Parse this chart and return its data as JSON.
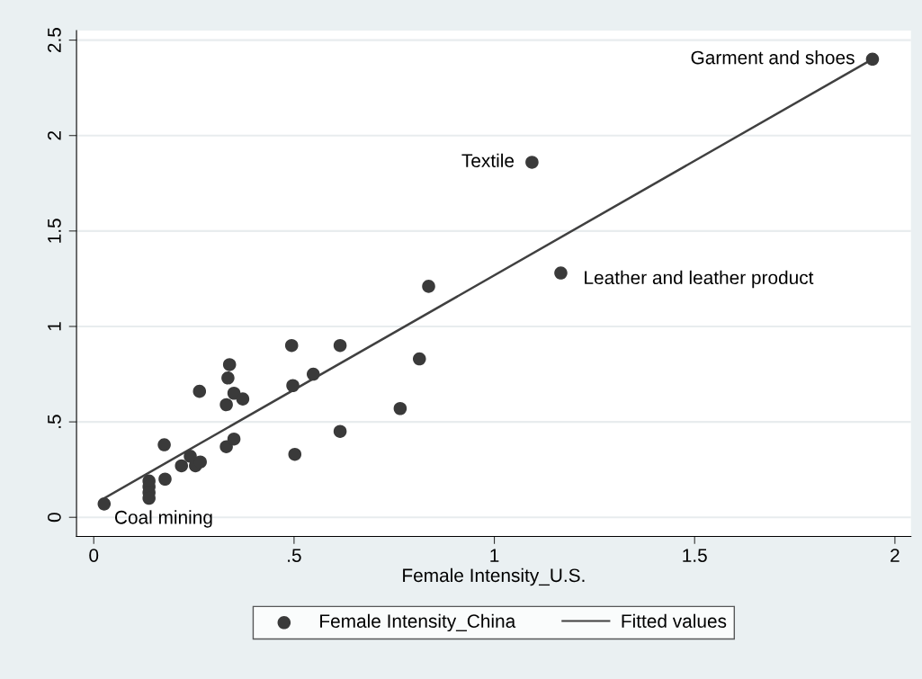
{
  "chart_data": {
    "type": "scatter",
    "xlabel": "Female Intensity_U.S.",
    "xlim": [
      -0.043,
      2.04
    ],
    "ylim": [
      -0.1,
      2.55
    ],
    "xticks": [
      0,
      {
        "value": 0.5,
        "label": ".5"
      },
      1,
      1.5,
      2
    ],
    "yticks": [
      0,
      {
        "value": 0.5,
        "label": ".5"
      },
      1,
      1.5,
      2,
      2.5
    ],
    "grid": "y",
    "legend": "bottom",
    "marker": "circle",
    "series": [
      {
        "name": "Female Intensity_China",
        "color": "#3a3a3a",
        "x": [
          0.026,
          0.138,
          0.138,
          0.138,
          0.138,
          0.178,
          0.176,
          0.219,
          0.241,
          0.254,
          0.266,
          0.264,
          0.331,
          0.35,
          0.331,
          0.35,
          0.372,
          0.335,
          0.339,
          0.494,
          0.497,
          0.502,
          0.548,
          0.615,
          0.615,
          0.765,
          0.813,
          0.836,
          1.166,
          1.094,
          1.944
        ],
        "values": [
          0.07,
          0.19,
          0.16,
          0.13,
          0.1,
          0.2,
          0.38,
          0.27,
          0.32,
          0.27,
          0.29,
          0.66,
          0.37,
          0.41,
          0.59,
          0.65,
          0.62,
          0.73,
          0.8,
          0.9,
          0.69,
          0.33,
          0.75,
          0.9,
          0.45,
          0.57,
          0.83,
          1.21,
          1.28,
          1.86,
          2.4
        ]
      },
      {
        "name": "Fitted values",
        "type": "line",
        "color": "#404040",
        "marker": "none",
        "x": [
          0.026,
          1.944
        ],
        "values": [
          0.1,
          2.4
        ]
      }
    ],
    "annotations": [
      {
        "text": "Garment and shoes",
        "x": 1.944,
        "y": 2.4
      },
      {
        "text": "Textile",
        "x": 1.094,
        "y": 1.86
      },
      {
        "text": "Leather and leather product",
        "x": 1.166,
        "y": 1.28
      },
      {
        "text": "Coal mining",
        "x": 0.026,
        "y": 0.07
      }
    ]
  }
}
